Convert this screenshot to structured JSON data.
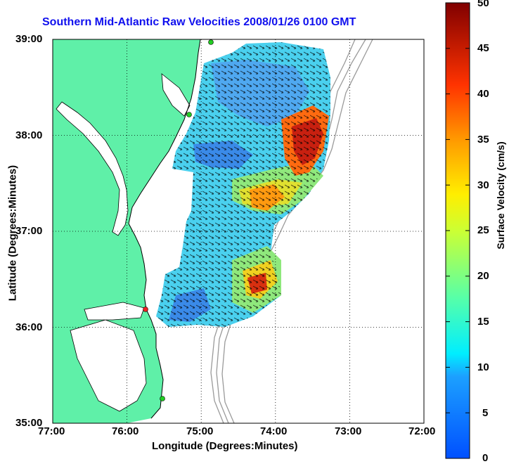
{
  "title": "Southern Mid-Atlantic Raw Velocities 2008/01/26 0100 GMT",
  "x_label": "Longitude (Degrees:Minutes)",
  "y_label": "Latitude (Degrees:Minutes)",
  "colorbar_label": "Surface Velocity (cm/s)",
  "x_ticks": [
    "77:00",
    "76:00",
    "75:00",
    "74:00",
    "73:00",
    "72:00"
  ],
  "y_ticks": [
    "39:00",
    "38:00",
    "37:00",
    "36:00",
    "35:00"
  ],
  "colorbar_ticks": [
    "50",
    "45",
    "40",
    "35",
    "30",
    "25",
    "20",
    "15",
    "10",
    "5",
    "0"
  ],
  "colors": {
    "land": "#5ff0a8",
    "title": "#1010ee",
    "grid": "#000000",
    "bathymetry": "#9a9a9a"
  },
  "stations": [
    {
      "color": "green"
    },
    {
      "color": "green"
    },
    {
      "color": "red"
    },
    {
      "color": "green"
    }
  ]
}
